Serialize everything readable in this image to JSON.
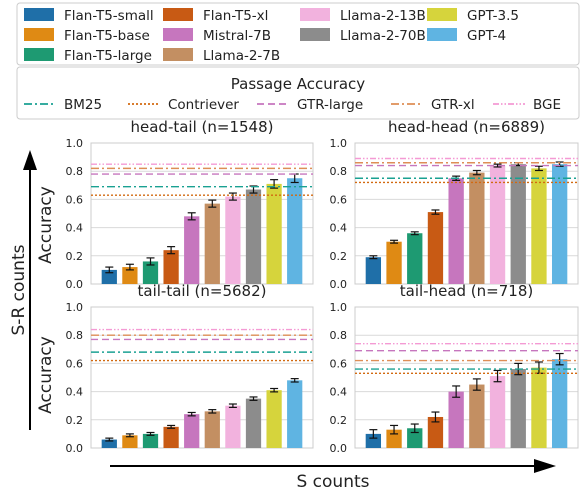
{
  "model_legend": {
    "entries": [
      {
        "name": "Flan-T5-small",
        "color": "#1f6fa8"
      },
      {
        "name": "Flan-T5-xl",
        "color": "#c85a14"
      },
      {
        "name": "Llama-2-13B",
        "color": "#f2b2de"
      },
      {
        "name": "GPT-3.5",
        "color": "#d6d43c"
      },
      {
        "name": "Flan-T5-base",
        "color": "#df8a14"
      },
      {
        "name": "Mistral-7B",
        "color": "#c676be"
      },
      {
        "name": "Llama-2-70B",
        "color": "#8c8c8c"
      },
      {
        "name": "GPT-4",
        "color": "#5fb4e2"
      },
      {
        "name": "Flan-T5-large",
        "color": "#1e9a72"
      },
      {
        "name": "Llama-2-7B",
        "color": "#c38f62"
      }
    ]
  },
  "passage_legend": {
    "title": "Passage Accuracy",
    "entries": [
      {
        "name": "BM25",
        "color": "#1aa192",
        "style": "dashdot"
      },
      {
        "name": "Contriever",
        "color": "#d26a10",
        "style": "dotted"
      },
      {
        "name": "GTR-large",
        "color": "#c676be",
        "style": "dashed"
      },
      {
        "name": "GTR-xl",
        "color": "#de8e56",
        "style": "dashdot"
      },
      {
        "name": "BGE",
        "color": "#f49ad4",
        "style": "dashdotdot"
      }
    ]
  },
  "axes": {
    "y_label": "Accuracy",
    "s_r_label": "S-R counts",
    "s_label": "S counts"
  },
  "chart_data": [
    {
      "type": "bar",
      "title": "head-tail (n=1548)",
      "ylabel": "Accuracy",
      "ylim": [
        0,
        1.0
      ],
      "yticks": [
        "0.0",
        "0.2",
        "0.4",
        "0.6",
        "0.8",
        "1.0"
      ],
      "categories": [
        "Flan-T5-small",
        "Flan-T5-base",
        "Flan-T5-large",
        "Flan-T5-xl",
        "Mistral-7B",
        "Llama-2-7B",
        "Llama-2-13B",
        "Llama-2-70B",
        "GPT-3.5",
        "GPT-4"
      ],
      "values": [
        0.1,
        0.12,
        0.16,
        0.24,
        0.48,
        0.57,
        0.62,
        0.67,
        0.71,
        0.75
      ],
      "errors": [
        0.02,
        0.02,
        0.025,
        0.025,
        0.025,
        0.025,
        0.025,
        0.025,
        0.03,
        0.03
      ],
      "passage_accuracy": {
        "BM25": 0.69,
        "Contriever": 0.63,
        "GTR-large": 0.78,
        "GTR-xl": 0.82,
        "BGE": 0.85
      }
    },
    {
      "type": "bar",
      "title": "head-head (n=6889)",
      "ylabel": "",
      "ylim": [
        0,
        1.0
      ],
      "yticks": [
        "0.0",
        "0.2",
        "0.4",
        "0.6",
        "0.8",
        "1.0"
      ],
      "categories": [
        "Flan-T5-small",
        "Flan-T5-base",
        "Flan-T5-large",
        "Flan-T5-xl",
        "Mistral-7B",
        "Llama-2-7B",
        "Llama-2-13B",
        "Llama-2-70B",
        "GPT-3.5",
        "GPT-4"
      ],
      "values": [
        0.19,
        0.3,
        0.36,
        0.51,
        0.75,
        0.79,
        0.84,
        0.85,
        0.82,
        0.85
      ],
      "errors": [
        0.01,
        0.01,
        0.01,
        0.015,
        0.015,
        0.015,
        0.01,
        0.01,
        0.015,
        0.015
      ],
      "passage_accuracy": {
        "BM25": 0.75,
        "Contriever": 0.72,
        "GTR-large": 0.84,
        "GTR-xl": 0.86,
        "BGE": 0.89
      }
    },
    {
      "type": "bar",
      "title": "tail-tail (n=5682)",
      "ylabel": "Accuracy",
      "ylim": [
        0,
        1.0
      ],
      "yticks": [
        "0.0",
        "0.2",
        "0.4",
        "0.6",
        "0.8",
        "1.0"
      ],
      "categories": [
        "Flan-T5-small",
        "Flan-T5-base",
        "Flan-T5-large",
        "Flan-T5-xl",
        "Mistral-7B",
        "Llama-2-7B",
        "Llama-2-13B",
        "Llama-2-70B",
        "GPT-3.5",
        "GPT-4"
      ],
      "values": [
        0.06,
        0.09,
        0.1,
        0.15,
        0.24,
        0.26,
        0.3,
        0.35,
        0.41,
        0.48
      ],
      "errors": [
        0.01,
        0.01,
        0.01,
        0.01,
        0.012,
        0.012,
        0.012,
        0.012,
        0.012,
        0.012
      ],
      "passage_accuracy": {
        "BM25": 0.68,
        "Contriever": 0.62,
        "GTR-large": 0.77,
        "GTR-xl": 0.8,
        "BGE": 0.84
      }
    },
    {
      "type": "bar",
      "title": "tail-head (n=718)",
      "ylabel": "",
      "ylim": [
        0,
        1.0
      ],
      "yticks": [
        "0.0",
        "0.2",
        "0.4",
        "0.6",
        "0.8",
        "1.0"
      ],
      "categories": [
        "Flan-T5-small",
        "Flan-T5-base",
        "Flan-T5-large",
        "Flan-T5-xl",
        "Mistral-7B",
        "Llama-2-7B",
        "Llama-2-13B",
        "Llama-2-70B",
        "GPT-3.5",
        "GPT-4"
      ],
      "values": [
        0.1,
        0.13,
        0.14,
        0.22,
        0.4,
        0.45,
        0.51,
        0.56,
        0.57,
        0.63
      ],
      "errors": [
        0.03,
        0.03,
        0.03,
        0.035,
        0.04,
        0.04,
        0.04,
        0.04,
        0.04,
        0.04
      ],
      "passage_accuracy": {
        "BM25": 0.56,
        "Contriever": 0.53,
        "GTR-large": 0.69,
        "GTR-xl": 0.62,
        "BGE": 0.74
      }
    }
  ]
}
